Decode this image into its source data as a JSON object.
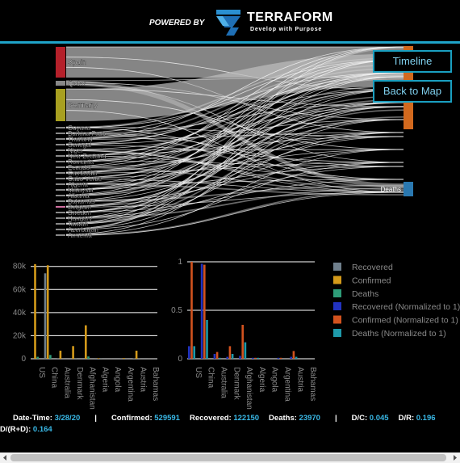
{
  "header": {
    "powered_by": "POWERED BY",
    "brand": "TERRAFORM",
    "tagline": "Develop with Purpose"
  },
  "buttons": [
    "Timeline",
    "Back to Map"
  ],
  "sankey": {
    "sources": [
      "Spain",
      "Qatar",
      "Germany",
      "Guyana",
      "Burkina Faso",
      "Thailand",
      "Senegal",
      "Niger",
      "New Zealand",
      "Romania",
      "Ecuador",
      "Cambodia",
      "Cabo Verde",
      "Algeria",
      "Malaysia",
      "Albania",
      "Bahamas",
      "Belgium",
      "Sweden",
      "Hungary",
      "Taiwan",
      "Azerbaijan",
      "Armenia"
    ],
    "target": "Deaths"
  },
  "charts": [
    {
      "type": "bar",
      "categories": [
        "US",
        "China",
        "Australia",
        "Denmark",
        "Afghanistan",
        "Algeria",
        "Angola",
        "Argentina",
        "Austria",
        "Bahamas"
      ],
      "series": [
        {
          "name": "Recovered",
          "color": "#6f7f8c",
          "values": [
            1,
            74000,
            100,
            1,
            2,
            30,
            0,
            50,
            200,
            0
          ]
        },
        {
          "name": "Confirmed",
          "color": "#d49a1a",
          "values": [
            82000,
            81000,
            7000,
            11000,
            29000,
            500,
            10,
            600,
            7000,
            20
          ]
        },
        {
          "name": "Deaths",
          "color": "#2e9c78",
          "values": [
            1700,
            3300,
            20,
            70,
            2000,
            40,
            0,
            15,
            70,
            0
          ]
        }
      ],
      "ylim": [
        0,
        84000
      ],
      "yticks": [
        0,
        {
          "value": 20000,
          "label": "20k"
        },
        {
          "value": 40000,
          "label": "40k"
        },
        {
          "value": 60000,
          "label": "60k"
        },
        {
          "value": 80000,
          "label": "80k"
        }
      ],
      "grid": true
    },
    {
      "type": "bar",
      "categories": [
        "US",
        "China",
        "Australia",
        "Denmark",
        "Afghanistan",
        "Algeria",
        "Angola",
        "Argentina",
        "Austria",
        "Bahamas"
      ],
      "series": [
        {
          "name": "Recovered (Normalized to 1)",
          "color": "#2233c0",
          "values": [
            0.13,
            0.98,
            0.05,
            0.02,
            0.03,
            0.01,
            0,
            0.01,
            0.02,
            0
          ]
        },
        {
          "name": "Confirmed (Normalized to 1)",
          "color": "#d2521e",
          "values": [
            1,
            0.97,
            0.07,
            0.13,
            0.35,
            0.01,
            0,
            0.01,
            0.08,
            0
          ]
        },
        {
          "name": "Deaths (Normalized to 1)",
          "color": "#1e9aaa",
          "values": [
            0.13,
            0.4,
            0.01,
            0.05,
            0.17,
            0.01,
            0,
            0,
            0.02,
            0
          ]
        }
      ],
      "ylim": [
        0,
        1
      ],
      "yticks": [
        0,
        0.5,
        1
      ],
      "grid": true
    }
  ],
  "info": {
    "separator": "|",
    "items": [
      {
        "label": "Date-Time:",
        "value": "3/28/20"
      },
      {
        "label": "Confirmed:",
        "value": "529591"
      },
      {
        "label": "Recovered:",
        "value": "122150"
      },
      {
        "label": "Deaths:",
        "value": "23970"
      },
      {
        "label": "D/C:",
        "value": "0.045"
      },
      {
        "label": "D/R:",
        "value": "0.196"
      },
      {
        "label": "D/(R+D):",
        "value": "0.164"
      }
    ]
  }
}
